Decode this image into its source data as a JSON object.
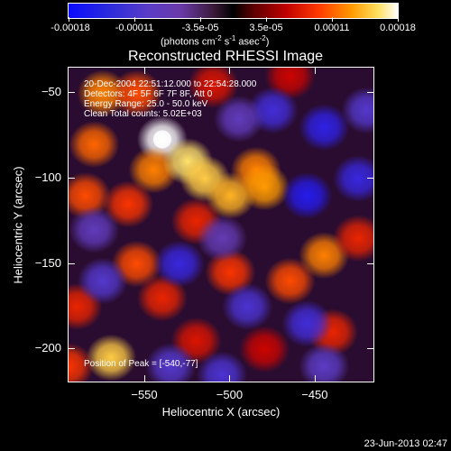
{
  "colorbar": {
    "ticks": [
      "-0.00018",
      "-0.00011",
      "-3.5e-05",
      "3.5e-05",
      "0.00011",
      "0.00018"
    ],
    "units_main": "(photons cm",
    "units_exp1": "-2",
    "units_mid1": " s",
    "units_exp2": "-1",
    "units_mid2": " asec",
    "units_exp3": "-2",
    "units_end": ")",
    "colors": [
      "#0a0aff",
      "#6a3aa8",
      "#000000",
      "#c00000",
      "#ff9a00",
      "#ffffff"
    ]
  },
  "chart_data": {
    "type": "heatmap",
    "title": "Reconstructed RHESSI Image",
    "xlabel": "Heliocentric X (arcsec)",
    "ylabel": "Heliocentric Y (arcsec)",
    "xlim": [
      -595,
      -415
    ],
    "ylim": [
      -220,
      -35
    ],
    "xticks": [
      -550,
      -500,
      -450
    ],
    "yticks": [
      -50,
      -100,
      -150,
      -200
    ],
    "annotations": [
      "20-Dec-2004 22:51:12.000 to 22:54:28.000",
      "Detectors: 4F 5F 6F 7F 8F, Att 0",
      "Energy Range: 25.0 - 50.0 keV",
      "Clean     Total counts: 5.02E+03"
    ],
    "peak_label": "Position of Peak = [-540,-77]",
    "peak": [
      -540,
      -77
    ],
    "vmin": -0.00018,
    "vmax": 0.00018,
    "sources": [
      {
        "x": -575,
        "y": -50,
        "v": 0.00012
      },
      {
        "x": -555,
        "y": -50,
        "v": 0.0001
      },
      {
        "x": -540,
        "y": -77,
        "v": 0.00018
      },
      {
        "x": -545,
        "y": -95,
        "v": 0.00012
      },
      {
        "x": -525,
        "y": -90,
        "v": 0.00016
      },
      {
        "x": -515,
        "y": -100,
        "v": 0.00015
      },
      {
        "x": -500,
        "y": -110,
        "v": 0.00014
      },
      {
        "x": -485,
        "y": -95,
        "v": 0.00012
      },
      {
        "x": -480,
        "y": -105,
        "v": 0.00013
      },
      {
        "x": -580,
        "y": -80,
        "v": 0.00011
      },
      {
        "x": -585,
        "y": -110,
        "v": 0.0001
      },
      {
        "x": -560,
        "y": -115,
        "v": 9e-05
      },
      {
        "x": -520,
        "y": -125,
        "v": 8e-05
      },
      {
        "x": -555,
        "y": -150,
        "v": 0.0001
      },
      {
        "x": -540,
        "y": -170,
        "v": 8e-05
      },
      {
        "x": -500,
        "y": -155,
        "v": 9e-05
      },
      {
        "x": -465,
        "y": -160,
        "v": 0.0001
      },
      {
        "x": -445,
        "y": -145,
        "v": 0.00012
      },
      {
        "x": -425,
        "y": -135,
        "v": 8e-05
      },
      {
        "x": -590,
        "y": -175,
        "v": 8e-05
      },
      {
        "x": -570,
        "y": -205,
        "v": 0.00015
      },
      {
        "x": -595,
        "y": -210,
        "v": 9e-05
      },
      {
        "x": -520,
        "y": -195,
        "v": 7e-05
      },
      {
        "x": -480,
        "y": -200,
        "v": 6e-05
      },
      {
        "x": -440,
        "y": -190,
        "v": 8e-05
      },
      {
        "x": -465,
        "y": -40,
        "v": 6e-05
      },
      {
        "x": -510,
        "y": -45,
        "v": 7e-05
      },
      {
        "x": -475,
        "y": -60,
        "v": -0.00012
      },
      {
        "x": -445,
        "y": -70,
        "v": -0.00014
      },
      {
        "x": -420,
        "y": -60,
        "v": -0.0001
      },
      {
        "x": -455,
        "y": -110,
        "v": -0.00015
      },
      {
        "x": -425,
        "y": -100,
        "v": -0.00013
      },
      {
        "x": -455,
        "y": -185,
        "v": -0.00012
      },
      {
        "x": -490,
        "y": -175,
        "v": -0.00011
      },
      {
        "x": -575,
        "y": -160,
        "v": -0.0001
      },
      {
        "x": -530,
        "y": -150,
        "v": -0.00013
      },
      {
        "x": -535,
        "y": -210,
        "v": -0.0001
      },
      {
        "x": -505,
        "y": -215,
        "v": -0.00011
      },
      {
        "x": -445,
        "y": -210,
        "v": -9e-05
      },
      {
        "x": -580,
        "y": -130,
        "v": -8e-05
      },
      {
        "x": -505,
        "y": -135,
        "v": -7e-05
      },
      {
        "x": -495,
        "y": -65,
        "v": -8e-05
      }
    ]
  },
  "footer": {
    "timestamp": "23-Jun-2013 02:47"
  }
}
